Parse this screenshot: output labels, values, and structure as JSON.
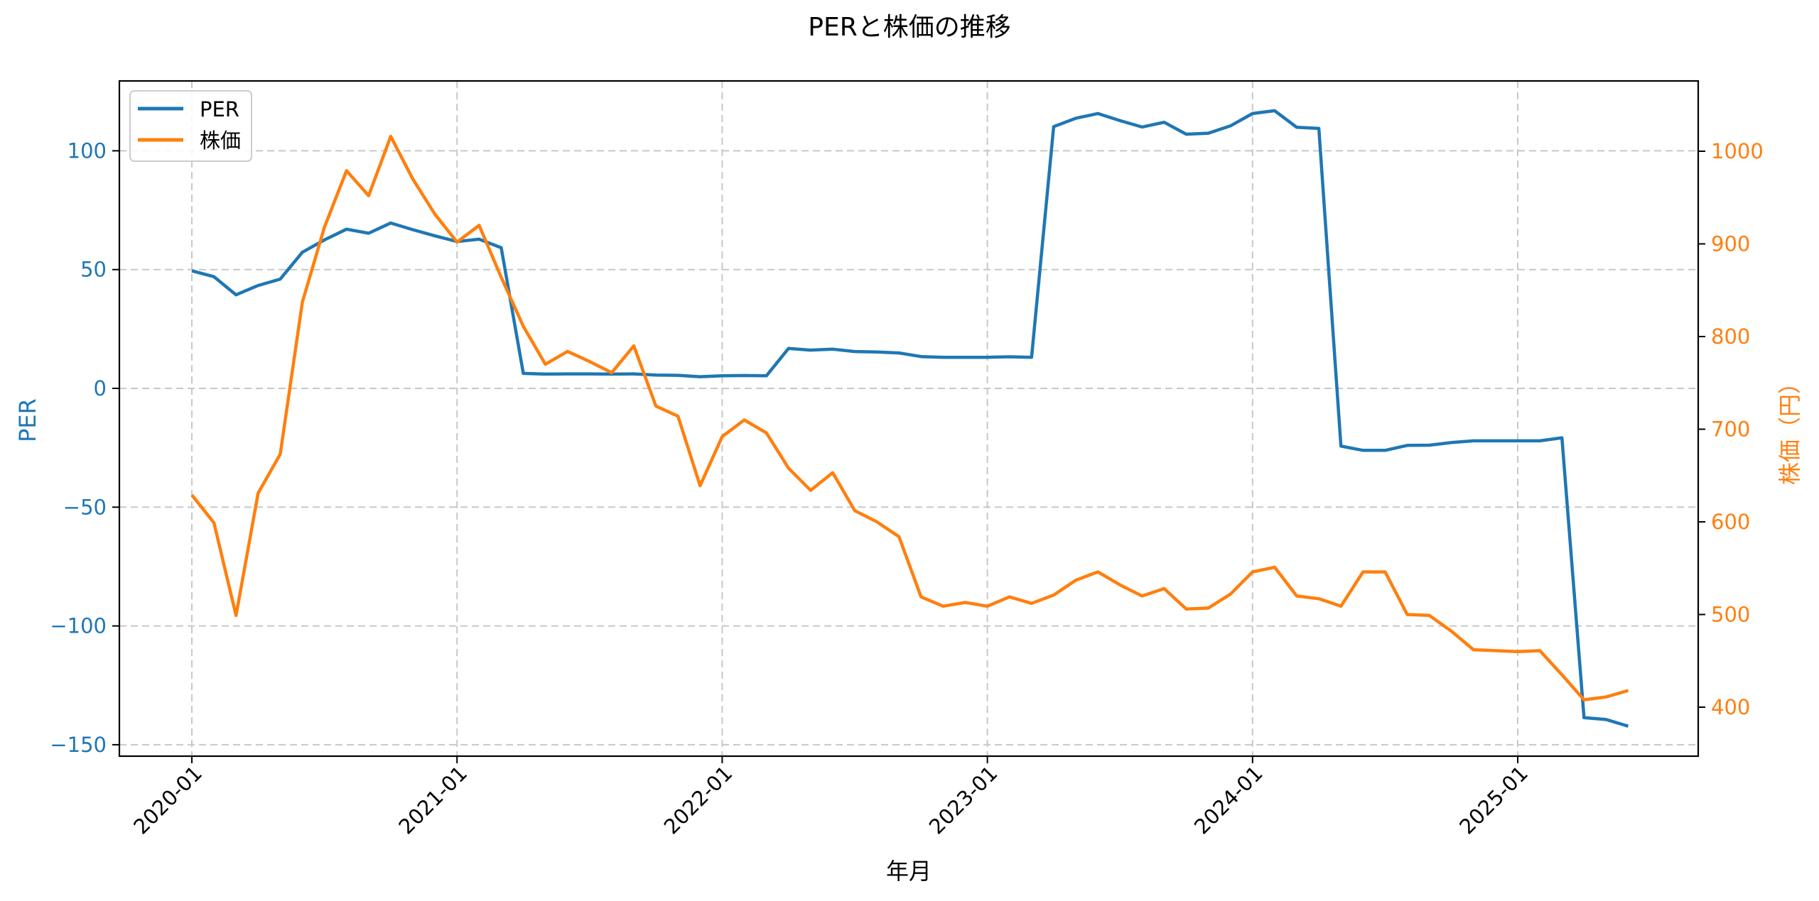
{
  "chart_data": {
    "type": "line",
    "title": "PERと株価の推移",
    "xlabel": "年月",
    "ylabel_left": "PER",
    "ylabel_right": "株価（円）",
    "legend": [
      "PER",
      "株価"
    ],
    "legend_position": "upper left",
    "grid": true,
    "x_ticks": [
      "2020-01",
      "2021-01",
      "2022-01",
      "2023-01",
      "2024-01",
      "2025-01"
    ],
    "y_left_ticks": [
      100,
      50,
      0,
      -50,
      -100,
      -150
    ],
    "y_right_ticks": [
      1000,
      900,
      800,
      700,
      600,
      500,
      400
    ],
    "ylim_left": [
      -155,
      130
    ],
    "ylim_right": [
      345,
      1075
    ],
    "colors": {
      "PER": "#1f77b4",
      "株価": "#ff7f0e"
    },
    "x": [
      "2020-01",
      "2020-02",
      "2020-03",
      "2020-04",
      "2020-05",
      "2020-06",
      "2020-07",
      "2020-08",
      "2020-09",
      "2020-10",
      "2020-11",
      "2020-12",
      "2021-01",
      "2021-02",
      "2021-03",
      "2021-04",
      "2021-05",
      "2021-06",
      "2021-07",
      "2021-08",
      "2021-09",
      "2021-10",
      "2021-11",
      "2021-12",
      "2022-01",
      "2022-02",
      "2022-03",
      "2022-04",
      "2022-05",
      "2022-06",
      "2022-07",
      "2022-08",
      "2022-09",
      "2022-10",
      "2022-11",
      "2022-12",
      "2023-01",
      "2023-02",
      "2023-03",
      "2023-04",
      "2023-05",
      "2023-06",
      "2023-07",
      "2023-08",
      "2023-09",
      "2023-10",
      "2023-11",
      "2023-12",
      "2024-01",
      "2024-02",
      "2024-03",
      "2024-04",
      "2024-05",
      "2024-06",
      "2024-07",
      "2024-08",
      "2024-09",
      "2024-10",
      "2024-11",
      "2024-12",
      "2025-01",
      "2025-02",
      "2025-03",
      "2025-04",
      "2025-05",
      "2025-06"
    ],
    "series": [
      {
        "name": "PER",
        "axis": "left",
        "values": [
          49.5,
          47.0,
          39.4,
          43.3,
          46.0,
          57.3,
          62.5,
          67.0,
          65.3,
          69.6,
          66.8,
          64.2,
          61.8,
          62.8,
          59.2,
          6.3,
          6.0,
          6.1,
          6.1,
          6.0,
          6.1,
          5.6,
          5.5,
          4.9,
          5.3,
          5.4,
          5.3,
          16.8,
          16.1,
          16.5,
          15.5,
          15.3,
          14.9,
          13.4,
          13.1,
          13.1,
          13.1,
          13.3,
          13.1,
          110.2,
          113.7,
          115.7,
          112.7,
          110.0,
          112.0,
          107.0,
          107.4,
          110.5,
          115.7,
          116.9,
          109.9,
          109.4,
          -24.3,
          -26.1,
          -26.1,
          -24.0,
          -23.9,
          -22.8,
          -22.1,
          -22.1,
          -22.1,
          -22.1,
          -20.8,
          -138.6,
          -139.4,
          -142.2
        ]
      },
      {
        "name": "株価",
        "axis": "right",
        "values": [
          629,
          599,
          499,
          631,
          673,
          837,
          918,
          979,
          952,
          1016,
          970,
          932,
          902,
          920,
          864,
          811,
          770,
          784,
          773,
          761,
          790,
          725,
          714,
          639,
          692,
          710,
          696,
          658,
          634,
          653,
          612,
          600,
          584,
          519,
          509,
          513,
          509,
          519,
          512,
          521,
          537,
          546,
          532,
          520,
          528,
          506,
          507,
          522,
          546,
          551,
          520,
          517,
          509,
          546,
          546,
          500,
          499,
          482,
          462,
          461,
          460,
          461,
          435,
          408,
          411,
          418
        ]
      }
    ]
  }
}
